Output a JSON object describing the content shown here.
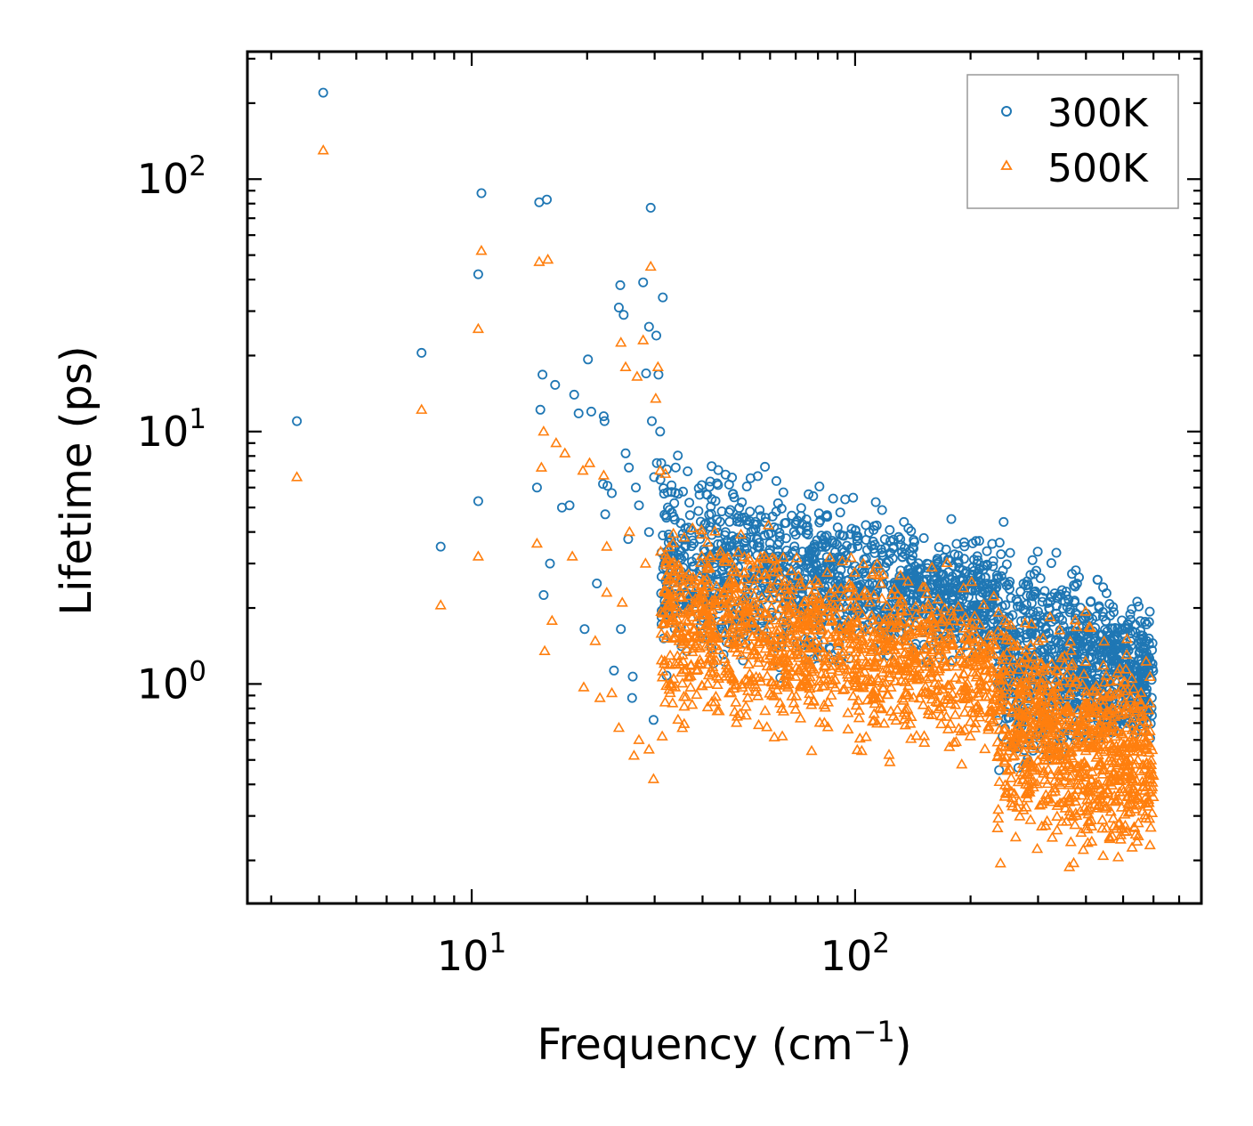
{
  "chart_data": {
    "type": "scatter",
    "title": "",
    "xlabel": "Frequency (cm",
    "xlabel_sup": "−1",
    "xlabel_close": ")",
    "ylabel": "Lifetime (ps)",
    "xscale": "log",
    "yscale": "log",
    "xlim": [
      2.6,
      800
    ],
    "ylim": [
      0.135,
      320
    ],
    "x_ticks": [
      {
        "value": 10,
        "base": "10",
        "exp": "1"
      },
      {
        "value": 100,
        "base": "10",
        "exp": "2"
      }
    ],
    "y_ticks": [
      {
        "value": 1,
        "base": "10",
        "exp": "0"
      },
      {
        "value": 10,
        "base": "10",
        "exp": "1"
      },
      {
        "value": 100,
        "base": "10",
        "exp": "2"
      }
    ],
    "legend_position": "top-right",
    "series": [
      {
        "name": "300K",
        "marker": "circle",
        "color": "#1f77b4",
        "points": [
          [
            3.5,
            11
          ],
          [
            4.1,
            220
          ],
          [
            7.4,
            20.5
          ],
          [
            8.3,
            3.5
          ],
          [
            10.4,
            42
          ],
          [
            10.4,
            5.3
          ],
          [
            10.6,
            88
          ],
          [
            14.8,
            6
          ],
          [
            15.0,
            81
          ],
          [
            15.1,
            12.2
          ],
          [
            15.3,
            16.8
          ],
          [
            15.4,
            2.25
          ],
          [
            15.7,
            83
          ],
          [
            16.0,
            3.0
          ],
          [
            16.5,
            15.3
          ],
          [
            17.2,
            5.0
          ],
          [
            18.0,
            5.1
          ],
          [
            18.5,
            14
          ],
          [
            19.0,
            11.8
          ],
          [
            19.7,
            1.65
          ],
          [
            20.1,
            19.3
          ],
          [
            20.5,
            12
          ],
          [
            21.2,
            2.5
          ],
          [
            22.1,
            11.5
          ],
          [
            22.2,
            11
          ],
          [
            22.0,
            6.2
          ],
          [
            22.3,
            4.7
          ],
          [
            22.6,
            6.1
          ],
          [
            23.2,
            5.7
          ],
          [
            23.5,
            1.13
          ],
          [
            24.2,
            31
          ],
          [
            24.4,
            38
          ],
          [
            24.5,
            1.65
          ],
          [
            24.9,
            29
          ],
          [
            25.2,
            8.2
          ],
          [
            25.6,
            3.75
          ],
          [
            25.7,
            7.2
          ],
          [
            26.3,
            1.07
          ],
          [
            26.2,
            0.88
          ],
          [
            26.8,
            6
          ],
          [
            27.3,
            5.1
          ],
          [
            28.0,
            39
          ],
          [
            28.5,
            17
          ],
          [
            29.0,
            26
          ],
          [
            29.3,
            77
          ],
          [
            29.5,
            11
          ],
          [
            29.0,
            4.0
          ],
          [
            29.9,
            6.6
          ],
          [
            30.3,
            24
          ],
          [
            30.4,
            7.5
          ],
          [
            30.7,
            16.8
          ],
          [
            31.0,
            10
          ],
          [
            31.5,
            34
          ],
          [
            29.8,
            0.72
          ]
        ]
      },
      {
        "name": "500K",
        "marker": "triangle",
        "color": "#ff7f0e",
        "points": [
          [
            3.5,
            6.6
          ],
          [
            4.1,
            130
          ],
          [
            7.4,
            12.2
          ],
          [
            8.3,
            2.05
          ],
          [
            10.4,
            25.5
          ],
          [
            10.4,
            3.2
          ],
          [
            10.6,
            52
          ],
          [
            14.8,
            3.6
          ],
          [
            15.0,
            47
          ],
          [
            15.2,
            7.2
          ],
          [
            15.4,
            10
          ],
          [
            15.5,
            1.35
          ],
          [
            15.8,
            48
          ],
          [
            16.2,
            1.78
          ],
          [
            16.6,
            9
          ],
          [
            17.5,
            8.2
          ],
          [
            18.3,
            3.2
          ],
          [
            19.5,
            7
          ],
          [
            19.6,
            0.97
          ],
          [
            20.3,
            7.5
          ],
          [
            21.0,
            1.48
          ],
          [
            21.6,
            0.88
          ],
          [
            22.1,
            6.7
          ],
          [
            22.5,
            3.5
          ],
          [
            22.5,
            2.3
          ],
          [
            23.2,
            0.92
          ],
          [
            24.2,
            0.67
          ],
          [
            24.5,
            22.5
          ],
          [
            24.7,
            2.1
          ],
          [
            25.2,
            18
          ],
          [
            25.8,
            4
          ],
          [
            26.5,
            0.52
          ],
          [
            27.0,
            16.5
          ],
          [
            27.3,
            0.6
          ],
          [
            28.0,
            23
          ],
          [
            28.4,
            3
          ],
          [
            29.0,
            0.55
          ],
          [
            29.3,
            45
          ],
          [
            29.8,
            0.42
          ],
          [
            30.2,
            13.5
          ],
          [
            30.6,
            18
          ],
          [
            31.0,
            7
          ],
          [
            31.4,
            0.62
          ],
          [
            32.0,
            6.8
          ]
        ]
      }
    ],
    "dense_clusters": [
      {
        "series": "300K",
        "x_from": 31,
        "x_to": 235,
        "y_start_lo": 0.9,
        "y_start_hi": 10,
        "y_end_lo": 1.1,
        "y_end_hi": 4,
        "count": 1300
      },
      {
        "series": "300K",
        "x_from": 235,
        "x_to": 600,
        "y_start_lo": 0.32,
        "y_start_hi": 5.2,
        "y_end_lo": 0.5,
        "y_end_hi": 2.2,
        "count": 900
      },
      {
        "series": "500K",
        "x_from": 31,
        "x_to": 235,
        "y_start_lo": 0.55,
        "y_start_hi": 6,
        "y_end_lo": 0.4,
        "y_end_hi": 2.7,
        "count": 1300
      },
      {
        "series": "500K",
        "x_from": 235,
        "x_to": 600,
        "y_start_lo": 0.17,
        "y_start_hi": 3.0,
        "y_end_lo": 0.14,
        "y_end_hi": 1.5,
        "count": 900
      }
    ]
  }
}
